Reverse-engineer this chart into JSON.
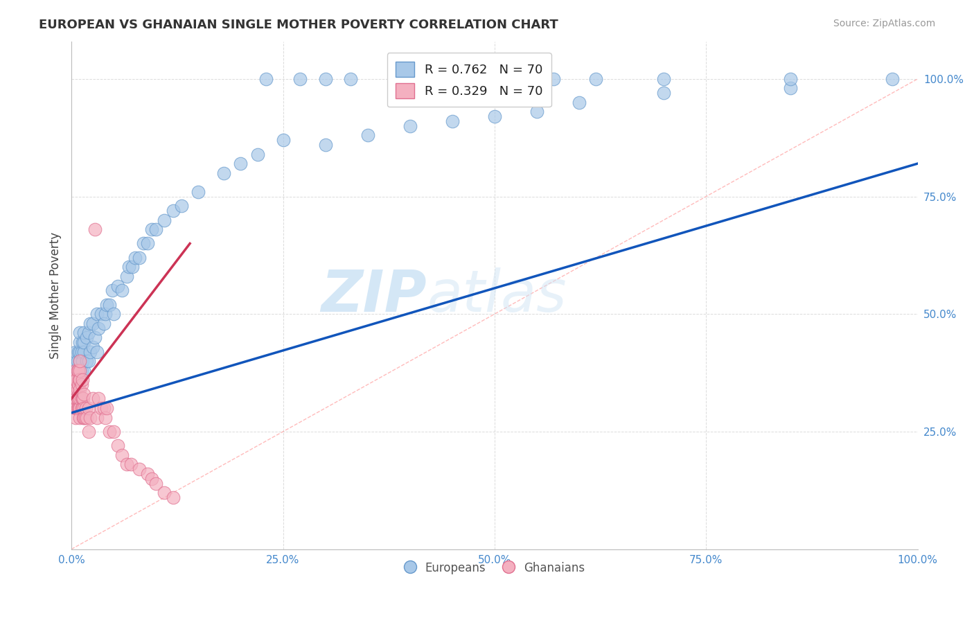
{
  "title": "EUROPEAN VS GHANAIAN SINGLE MOTHER POVERTY CORRELATION CHART",
  "source": "Source: ZipAtlas.com",
  "ylabel": "Single Mother Poverty",
  "xlim": [
    0,
    1
  ],
  "ylim": [
    0,
    1.08
  ],
  "xticks": [
    0,
    0.25,
    0.5,
    0.75,
    1.0
  ],
  "xticklabels": [
    "0.0%",
    "25.0%",
    "50.0%",
    "75.0%",
    "100.0%"
  ],
  "yticks": [
    0.25,
    0.5,
    0.75,
    1.0
  ],
  "yticklabels": [
    "25.0%",
    "50.0%",
    "75.0%",
    "100.0%"
  ],
  "european_color": "#a8c8e8",
  "ghanaian_color": "#f4b0c0",
  "european_edge": "#6699cc",
  "ghanaian_edge": "#e07090",
  "legend_blue_label": "R = 0.762   N = 70",
  "legend_pink_label": "R = 0.329   N = 70",
  "europeans_label": "Europeans",
  "ghanaians_label": "Ghanaians",
  "blue_line_color": "#1155bb",
  "pink_line_color": "#cc3355",
  "ref_line_color": "#cccccc",
  "watermark_zip": "ZIP",
  "watermark_atlas": "atlas",
  "background_color": "#ffffff",
  "grid_color": "#cccccc",
  "european_x": [
    0.005,
    0.005,
    0.005,
    0.005,
    0.005,
    0.007,
    0.007,
    0.008,
    0.008,
    0.01,
    0.01,
    0.01,
    0.01,
    0.01,
    0.01,
    0.012,
    0.012,
    0.013,
    0.013,
    0.015,
    0.015,
    0.015,
    0.015,
    0.018,
    0.018,
    0.02,
    0.02,
    0.022,
    0.022,
    0.025,
    0.025,
    0.028,
    0.03,
    0.03,
    0.032,
    0.035,
    0.038,
    0.04,
    0.042,
    0.045,
    0.048,
    0.05,
    0.055,
    0.06,
    0.065,
    0.068,
    0.072,
    0.075,
    0.08,
    0.085,
    0.09,
    0.095,
    0.1,
    0.11,
    0.12,
    0.13,
    0.15,
    0.18,
    0.2,
    0.22,
    0.25,
    0.3,
    0.35,
    0.4,
    0.45,
    0.5,
    0.55,
    0.6,
    0.7,
    0.85
  ],
  "european_y": [
    0.35,
    0.37,
    0.38,
    0.4,
    0.42,
    0.38,
    0.4,
    0.37,
    0.42,
    0.36,
    0.38,
    0.4,
    0.42,
    0.44,
    0.46,
    0.38,
    0.42,
    0.4,
    0.44,
    0.38,
    0.42,
    0.44,
    0.46,
    0.4,
    0.45,
    0.4,
    0.46,
    0.42,
    0.48,
    0.43,
    0.48,
    0.45,
    0.42,
    0.5,
    0.47,
    0.5,
    0.48,
    0.5,
    0.52,
    0.52,
    0.55,
    0.5,
    0.56,
    0.55,
    0.58,
    0.6,
    0.6,
    0.62,
    0.62,
    0.65,
    0.65,
    0.68,
    0.68,
    0.7,
    0.72,
    0.73,
    0.76,
    0.8,
    0.82,
    0.84,
    0.87,
    0.86,
    0.88,
    0.9,
    0.91,
    0.92,
    0.93,
    0.95,
    0.97,
    0.98
  ],
  "ghanaian_x": [
    0.003,
    0.003,
    0.004,
    0.004,
    0.004,
    0.005,
    0.005,
    0.005,
    0.005,
    0.005,
    0.005,
    0.006,
    0.006,
    0.006,
    0.006,
    0.007,
    0.007,
    0.007,
    0.007,
    0.008,
    0.008,
    0.008,
    0.008,
    0.009,
    0.009,
    0.009,
    0.01,
    0.01,
    0.01,
    0.01,
    0.01,
    0.01,
    0.01,
    0.012,
    0.012,
    0.012,
    0.013,
    0.013,
    0.013,
    0.014,
    0.014,
    0.015,
    0.015,
    0.015,
    0.016,
    0.017,
    0.018,
    0.02,
    0.02,
    0.022,
    0.025,
    0.028,
    0.03,
    0.032,
    0.035,
    0.038,
    0.04,
    0.042,
    0.045,
    0.05,
    0.055,
    0.06,
    0.065,
    0.07,
    0.08,
    0.09,
    0.095,
    0.1,
    0.11,
    0.12
  ],
  "ghanaian_y": [
    0.32,
    0.35,
    0.3,
    0.33,
    0.36,
    0.28,
    0.3,
    0.32,
    0.34,
    0.36,
    0.38,
    0.3,
    0.32,
    0.34,
    0.36,
    0.3,
    0.32,
    0.34,
    0.38,
    0.3,
    0.32,
    0.35,
    0.38,
    0.3,
    0.33,
    0.36,
    0.28,
    0.3,
    0.32,
    0.34,
    0.36,
    0.38,
    0.4,
    0.3,
    0.32,
    0.35,
    0.3,
    0.32,
    0.36,
    0.28,
    0.32,
    0.28,
    0.3,
    0.33,
    0.28,
    0.3,
    0.28,
    0.25,
    0.3,
    0.28,
    0.32,
    0.68,
    0.28,
    0.32,
    0.3,
    0.3,
    0.28,
    0.3,
    0.25,
    0.25,
    0.22,
    0.2,
    0.18,
    0.18,
    0.17,
    0.16,
    0.15,
    0.14,
    0.12,
    0.11
  ],
  "eu_line_x0": 0.0,
  "eu_line_x1": 1.0,
  "eu_line_y0": 0.29,
  "eu_line_y1": 0.82,
  "gh_line_x0": 0.0,
  "gh_line_x1": 0.14,
  "gh_line_y0": 0.32,
  "gh_line_y1": 0.65,
  "top_eu_dots_x": [
    0.23,
    0.27,
    0.3,
    0.33,
    0.4,
    0.48,
    0.57,
    0.62,
    0.7,
    0.85,
    0.97
  ],
  "top_eu_dots_y": [
    1.0,
    1.0,
    1.0,
    1.0,
    1.0,
    1.0,
    1.0,
    1.0,
    1.0,
    1.0,
    1.0
  ]
}
